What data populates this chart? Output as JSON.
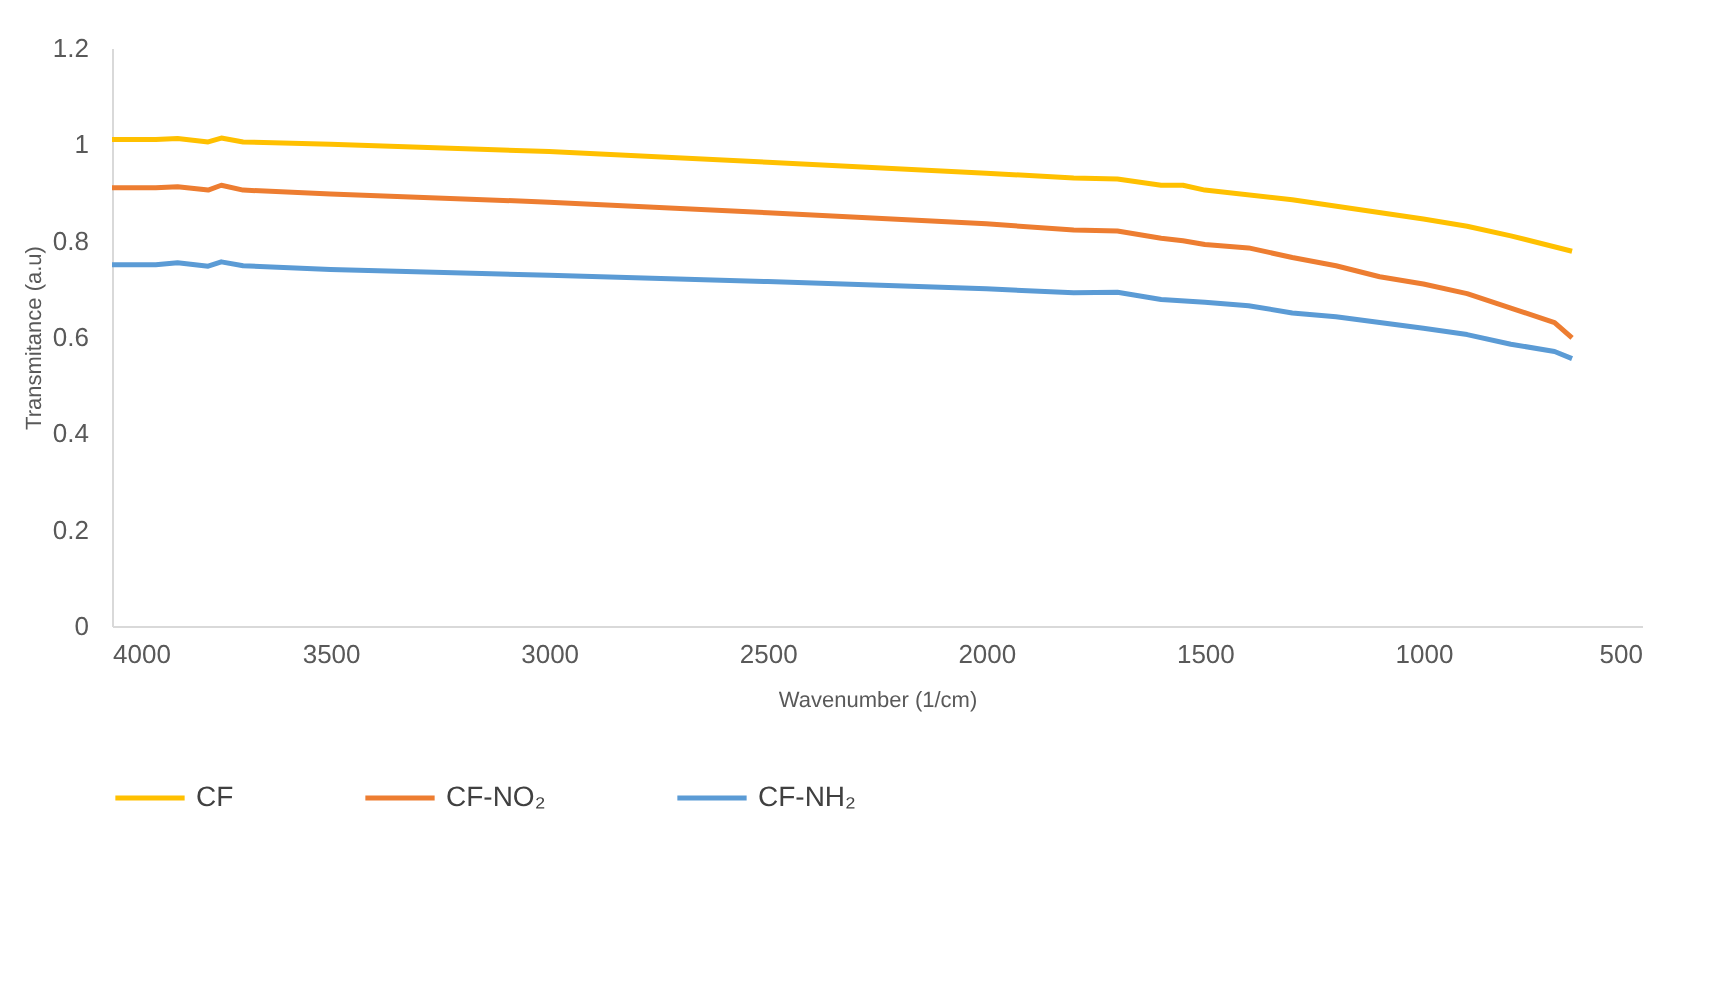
{
  "chart_data": {
    "type": "line",
    "xlabel": "Wavenumber (1/cm)",
    "ylabel": "Transmitance (a.u)",
    "xlim": [
      4000,
      500
    ],
    "xticks": [
      4000,
      3500,
      3000,
      2500,
      2000,
      1500,
      1000,
      500
    ],
    "ylim": [
      0,
      1.2
    ],
    "yticks": [
      0,
      0.2,
      0.4,
      0.6,
      0.8,
      1,
      1.2
    ],
    "grid": false,
    "legend": "bottom",
    "line_style": "solid",
    "marker": "none",
    "series": [
      {
        "name": "CF",
        "color": "#ffc000",
        "x": [
          4000,
          3900,
          3850,
          3780,
          3750,
          3700,
          3500,
          3000,
          2500,
          2000,
          1800,
          1700,
          1600,
          1550,
          1500,
          1300,
          1000,
          900,
          800,
          660
        ],
        "values": [
          1.01,
          1.01,
          1.012,
          1.005,
          1.013,
          1.005,
          1.0,
          0.985,
          0.963,
          0.94,
          0.93,
          0.928,
          0.915,
          0.915,
          0.905,
          0.885,
          0.845,
          0.83,
          0.81,
          0.778
        ]
      },
      {
        "name": "CF-NO₂",
        "color": "#ed7d31",
        "x": [
          4000,
          3900,
          3850,
          3780,
          3750,
          3700,
          3500,
          3000,
          2500,
          2000,
          1800,
          1700,
          1600,
          1550,
          1500,
          1400,
          1300,
          1200,
          1100,
          1000,
          900,
          800,
          700,
          660
        ],
        "values": [
          0.91,
          0.91,
          0.912,
          0.905,
          0.915,
          0.905,
          0.897,
          0.88,
          0.858,
          0.835,
          0.822,
          0.82,
          0.805,
          0.8,
          0.792,
          0.785,
          0.765,
          0.748,
          0.725,
          0.71,
          0.69,
          0.66,
          0.63,
          0.598
        ]
      },
      {
        "name": "CF-NH₂",
        "color": "#5b9bd5",
        "x": [
          4000,
          3900,
          3850,
          3780,
          3750,
          3700,
          3500,
          3000,
          2500,
          2000,
          1800,
          1700,
          1600,
          1500,
          1400,
          1300,
          1200,
          1000,
          900,
          800,
          700,
          660
        ],
        "values": [
          0.75,
          0.75,
          0.754,
          0.747,
          0.756,
          0.748,
          0.74,
          0.728,
          0.715,
          0.7,
          0.692,
          0.693,
          0.678,
          0.672,
          0.665,
          0.65,
          0.642,
          0.618,
          0.605,
          0.585,
          0.57,
          0.555
        ]
      }
    ]
  }
}
